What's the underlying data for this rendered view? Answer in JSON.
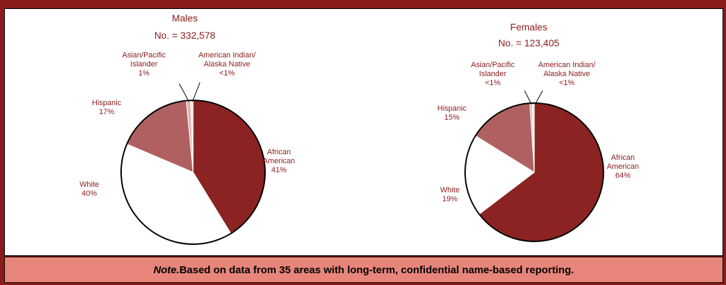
{
  "colors": {
    "background": "#8b1a1a",
    "african_american": "#8b2323",
    "white": "#ffffff",
    "hispanic": "#b06060",
    "asian_pacific_islander": "#d9b8b8",
    "american_indian_alaska_native": "#f0e4e4",
    "label_text": "#8b1a1a",
    "note_bar": "#e8857a"
  },
  "note": {
    "label": "Note.",
    "text": " Based on data from 35 areas with long-term, confidential name-based reporting."
  },
  "chart_data": [
    {
      "type": "pie",
      "title": "Males",
      "subtitle": "No. = 332,578",
      "slices": [
        {
          "key": "african_american",
          "label_lines": [
            "African",
            "American"
          ],
          "pct_label": "41%",
          "value": 41
        },
        {
          "key": "white",
          "label_lines": [
            "White"
          ],
          "pct_label": "40%",
          "value": 40
        },
        {
          "key": "hispanic",
          "label_lines": [
            "Hispanic"
          ],
          "pct_label": "17%",
          "value": 17
        },
        {
          "key": "asian_pacific_islander",
          "label_lines": [
            "Asian/Pacific",
            "Islander"
          ],
          "pct_label": "1%",
          "value": 1
        },
        {
          "key": "american_indian_alaska_native",
          "label_lines": [
            "American Indian/",
            "Alaska Native"
          ],
          "pct_label": "<1%",
          "value": 0.5
        }
      ]
    },
    {
      "type": "pie",
      "title": "Females",
      "subtitle": "No. = 123,405",
      "slices": [
        {
          "key": "african_american",
          "label_lines": [
            "African",
            "American"
          ],
          "pct_label": "64%",
          "value": 64
        },
        {
          "key": "white",
          "label_lines": [
            "White"
          ],
          "pct_label": "19%",
          "value": 19
        },
        {
          "key": "hispanic",
          "label_lines": [
            "Hispanic"
          ],
          "pct_label": "15%",
          "value": 15
        },
        {
          "key": "asian_pacific_islander",
          "label_lines": [
            "Asian/Pacific",
            "Islander"
          ],
          "pct_label": "<1%",
          "value": 0.5
        },
        {
          "key": "american_indian_alaska_native",
          "label_lines": [
            "American Indian/",
            "Alaska Native"
          ],
          "pct_label": "<1%",
          "value": 0.5
        }
      ]
    }
  ]
}
